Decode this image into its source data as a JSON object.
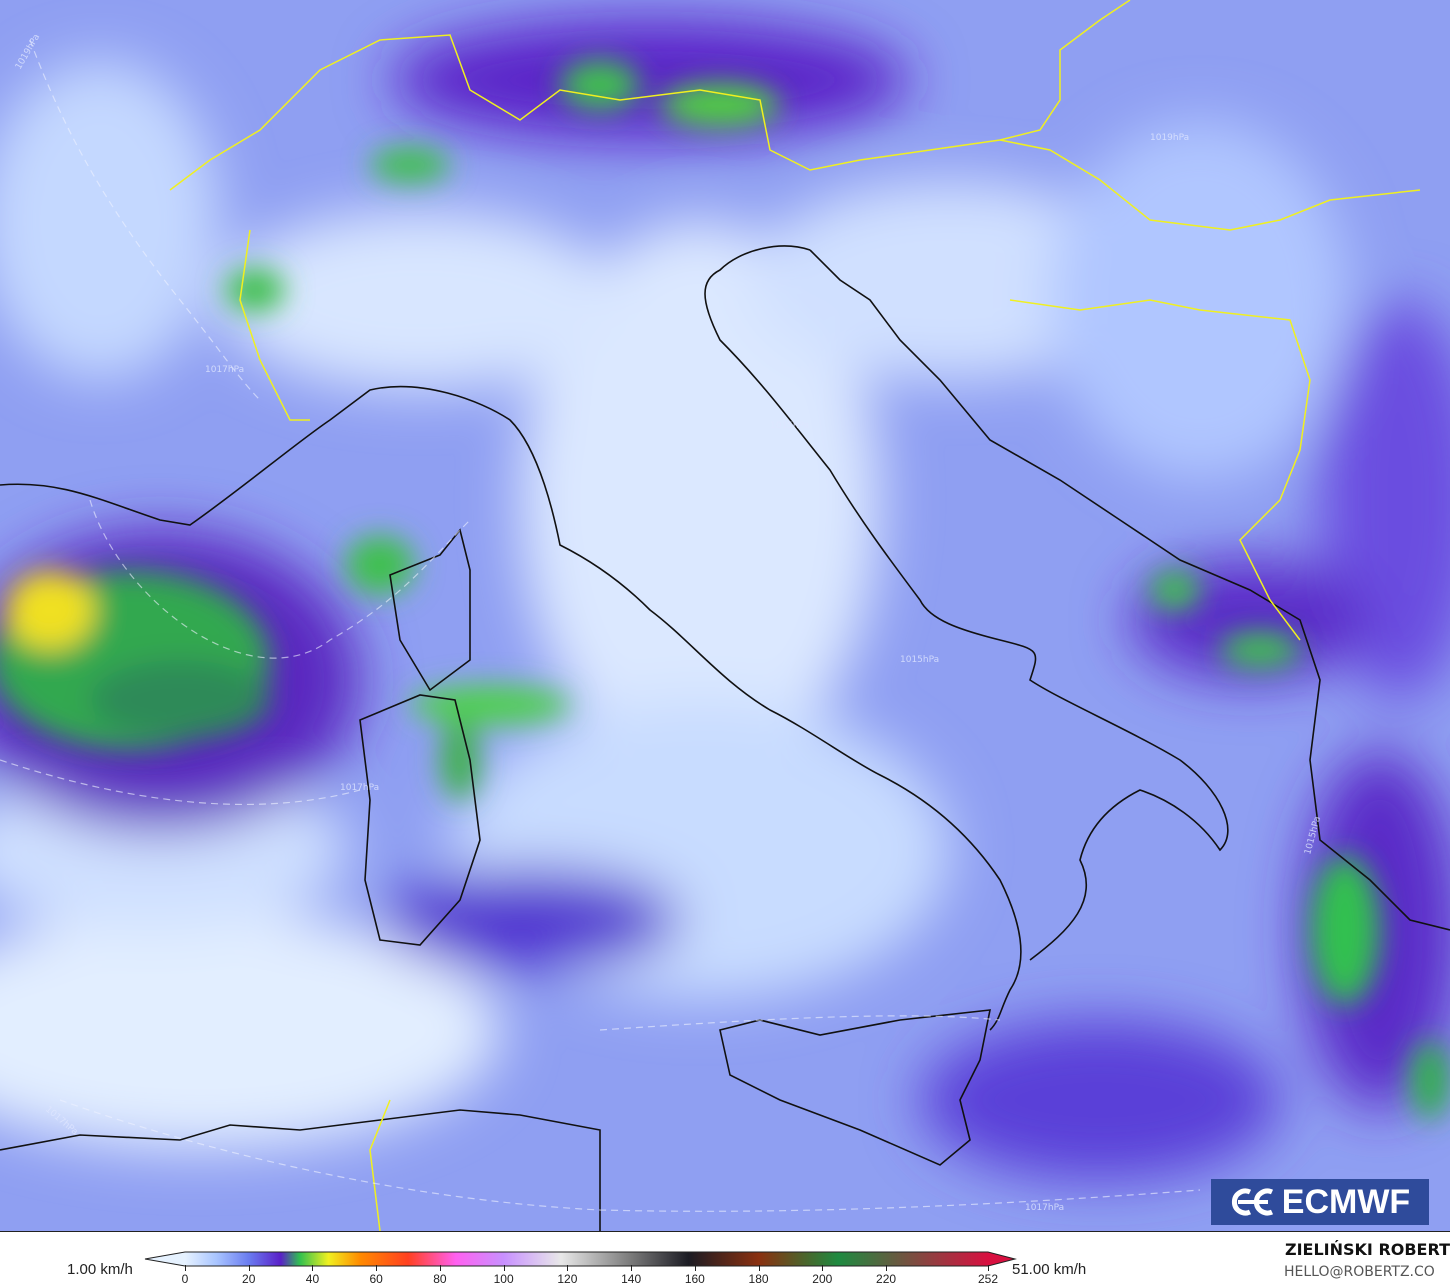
{
  "map": {
    "variable_unit": "km/h",
    "isobar_labels": [
      "1019hPa",
      "1019hPa",
      "1017hPa",
      "1015hPa",
      "1015hPa",
      "1017hPa",
      "1017hPa",
      "1017hPa",
      "1015hPa"
    ]
  },
  "legend": {
    "min_label": "1.00 km/h",
    "max_label": "51.00 km/h",
    "ticks": [
      "0",
      "20",
      "40",
      "60",
      "80",
      "100",
      "120",
      "140",
      "160",
      "180",
      "200",
      "220",
      "252"
    ],
    "tick_values": [
      0,
      20,
      40,
      60,
      80,
      100,
      120,
      140,
      160,
      180,
      200,
      220,
      252
    ],
    "scale_max": 252,
    "colors": [
      {
        "v": 0,
        "c": "#e6f2ff"
      },
      {
        "v": 10,
        "c": "#a8c4ff"
      },
      {
        "v": 20,
        "c": "#6a7cf0"
      },
      {
        "v": 30,
        "c": "#5a20c8"
      },
      {
        "v": 36,
        "c": "#30c050"
      },
      {
        "v": 45,
        "c": "#f0f020"
      },
      {
        "v": 55,
        "c": "#ff8a00"
      },
      {
        "v": 70,
        "c": "#ff4020"
      },
      {
        "v": 85,
        "c": "#ff60f0"
      },
      {
        "v": 100,
        "c": "#c890ff"
      },
      {
        "v": 118,
        "c": "#e8e8e8"
      },
      {
        "v": 140,
        "c": "#7a7a7a"
      },
      {
        "v": 158,
        "c": "#1c1c24"
      },
      {
        "v": 180,
        "c": "#8a3010"
      },
      {
        "v": 205,
        "c": "#1e8a40"
      },
      {
        "v": 252,
        "c": "#d81040"
      }
    ]
  },
  "branding": {
    "logo_text": "ECMWF",
    "author": "ZIELIŃSKI ROBERT",
    "email": "HELLO@ROBERTZ.CO"
  }
}
